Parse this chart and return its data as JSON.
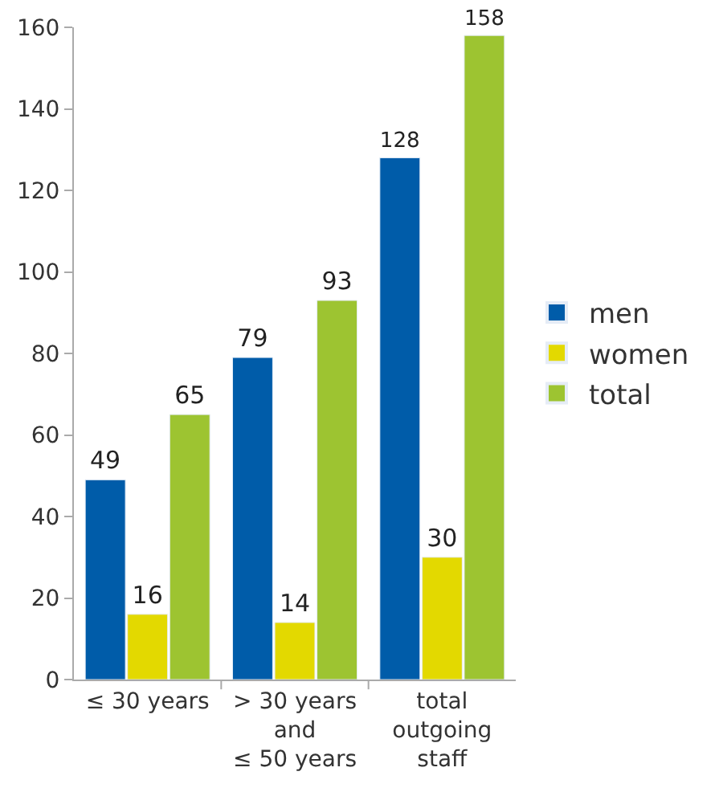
{
  "chart_data": {
    "type": "bar",
    "categories": [
      "≤ 30 years",
      "> 30 years\nand\n≤ 50 years",
      "total\noutgoing\nstaff"
    ],
    "series": [
      {
        "name": "men",
        "color": "#005ca9",
        "values": [
          49,
          79,
          128
        ]
      },
      {
        "name": "women",
        "color": "#e3d900",
        "values": [
          16,
          14,
          30
        ]
      },
      {
        "name": "total",
        "color": "#9dc431",
        "values": [
          65,
          93,
          158
        ]
      }
    ],
    "ylim": [
      0,
      160
    ],
    "yticks": [
      0,
      20,
      40,
      60,
      80,
      100,
      120,
      140,
      160
    ],
    "legend": "right",
    "data_labels": true
  }
}
